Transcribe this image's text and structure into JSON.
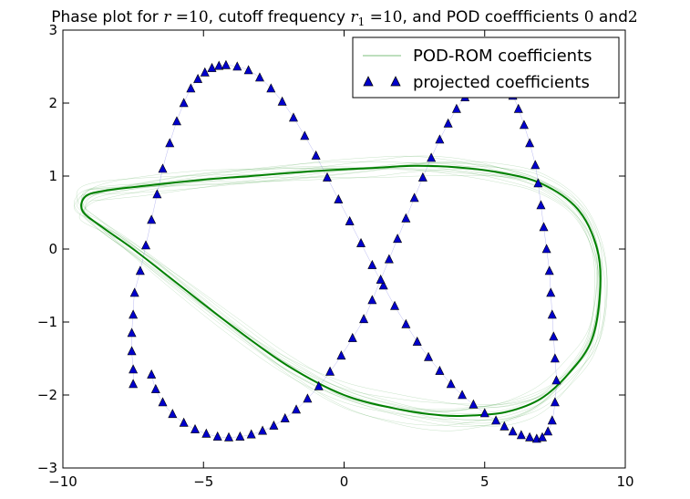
{
  "chart_data": {
    "type": "line",
    "title": {
      "prefix": "Phase plot for ",
      "r_symbol": "r",
      "equals": " =",
      "r_value": "10",
      "mid": ", cutoff frequency ",
      "r1_symbol": "r",
      "r1_sub": "1",
      "equals2": " =",
      "r1_value": "10",
      "suffix": ", and POD coeffficients ",
      "coef_a": "0",
      "and_word": " and",
      "coef_b": "2"
    },
    "xlabel": "",
    "ylabel": "",
    "xlim": [
      -10,
      10
    ],
    "ylim": [
      -3,
      3
    ],
    "xticks": [
      -10,
      -5,
      0,
      5,
      10
    ],
    "yticks": [
      -3,
      -2,
      -1,
      0,
      1,
      2,
      3
    ],
    "xtick_labels": [
      "−10",
      "−5",
      "0",
      "5",
      "10"
    ],
    "ytick_labels": [
      "−3",
      "−2",
      "−1",
      "0",
      "1",
      "2",
      "3"
    ],
    "legend": {
      "placement": "top-right",
      "entries": [
        {
          "label": "POD-ROM coefficients",
          "style": "line",
          "color": "#008000"
        },
        {
          "label": "projected coefficients",
          "style": "marker",
          "marker": "triangle-up",
          "color": "#0000cc"
        }
      ]
    },
    "colors": {
      "rom_line": "#008000",
      "projected_marker": "#0000cc",
      "projected_edge": "#000000"
    },
    "series": [
      {
        "name": "POD-ROM coefficients",
        "style": "line",
        "x": [
          -9.2,
          -8.5,
          -7.0,
          -5.0,
          -3.0,
          -1.0,
          1.0,
          2.5,
          4.0,
          5.5,
          7.0,
          8.3,
          9.0,
          9.1,
          8.8,
          8.0,
          7.0,
          5.8,
          4.6,
          3.5,
          2.0,
          0.0,
          -2.0,
          -4.0,
          -6.0,
          -7.5,
          -8.6,
          -9.3,
          -9.2
        ],
        "y": [
          0.72,
          0.8,
          0.87,
          0.95,
          1.01,
          1.07,
          1.11,
          1.14,
          1.12,
          1.05,
          0.9,
          0.55,
          0.0,
          -0.6,
          -1.25,
          -1.7,
          -2.05,
          -2.23,
          -2.28,
          -2.28,
          -2.2,
          -2.0,
          -1.6,
          -1.05,
          -0.45,
          0.0,
          0.3,
          0.52,
          0.72
        ]
      },
      {
        "name": "projected coefficients",
        "style": "marker",
        "x": [
          -7.5,
          -7.5,
          -7.55,
          -7.55,
          -7.5,
          -7.45,
          -7.25,
          -7.05,
          -6.85,
          -6.65,
          -6.45,
          -6.2,
          -5.95,
          -5.7,
          -5.45,
          -5.2,
          -4.95,
          -4.7,
          -4.45,
          -4.2,
          -3.8,
          -3.4,
          -3.0,
          -2.6,
          -2.2,
          -1.8,
          -1.4,
          -1.0,
          -0.6,
          -0.2,
          0.2,
          0.6,
          1.0,
          1.4,
          1.8,
          2.2,
          2.6,
          3.0,
          3.4,
          3.8,
          4.2,
          4.6,
          5.0,
          5.4,
          5.7,
          6.0,
          6.3,
          6.6,
          6.85,
          7.05,
          7.25,
          7.4,
          7.5,
          7.55,
          7.5,
          7.45,
          7.4,
          7.35,
          7.3,
          7.2,
          7.1,
          7.0,
          6.9,
          6.8,
          6.6,
          6.4,
          6.2,
          6.0,
          5.75,
          5.5,
          5.2,
          4.9,
          4.6,
          4.3,
          4.0,
          3.7,
          3.4,
          3.1,
          2.8,
          2.5,
          2.2,
          1.9,
          1.6,
          1.3,
          1.0,
          0.7,
          0.3,
          -0.1,
          -0.5,
          -0.9,
          -1.3,
          -1.7,
          -2.1,
          -2.5,
          -2.9,
          -3.3,
          -3.7,
          -4.1,
          -4.5,
          -4.9,
          -5.3,
          -5.7,
          -6.1,
          -6.45,
          -6.7,
          -6.85
        ],
        "y": [
          -1.85,
          -1.65,
          -1.4,
          -1.15,
          -0.9,
          -0.6,
          -0.3,
          0.05,
          0.4,
          0.75,
          1.1,
          1.45,
          1.75,
          2.0,
          2.2,
          2.33,
          2.42,
          2.48,
          2.51,
          2.52,
          2.5,
          2.45,
          2.35,
          2.2,
          2.02,
          1.8,
          1.55,
          1.28,
          0.98,
          0.68,
          0.38,
          0.08,
          -0.22,
          -0.5,
          -0.78,
          -1.03,
          -1.27,
          -1.48,
          -1.67,
          -1.85,
          -2.0,
          -2.13,
          -2.25,
          -2.35,
          -2.43,
          -2.5,
          -2.55,
          -2.58,
          -2.6,
          -2.58,
          -2.5,
          -2.35,
          -2.1,
          -1.8,
          -1.5,
          -1.2,
          -0.9,
          -0.6,
          -0.3,
          0.0,
          0.3,
          0.6,
          0.9,
          1.15,
          1.45,
          1.7,
          1.92,
          2.1,
          2.22,
          2.28,
          2.3,
          2.28,
          2.2,
          2.08,
          1.92,
          1.72,
          1.5,
          1.25,
          0.98,
          0.7,
          0.42,
          0.14,
          -0.14,
          -0.42,
          -0.7,
          -0.96,
          -1.22,
          -1.46,
          -1.68,
          -1.88,
          -2.05,
          -2.2,
          -2.32,
          -2.42,
          -2.49,
          -2.54,
          -2.57,
          -2.58,
          -2.57,
          -2.53,
          -2.47,
          -2.38,
          -2.26,
          -2.1,
          -1.92,
          -1.72
        ]
      }
    ]
  }
}
